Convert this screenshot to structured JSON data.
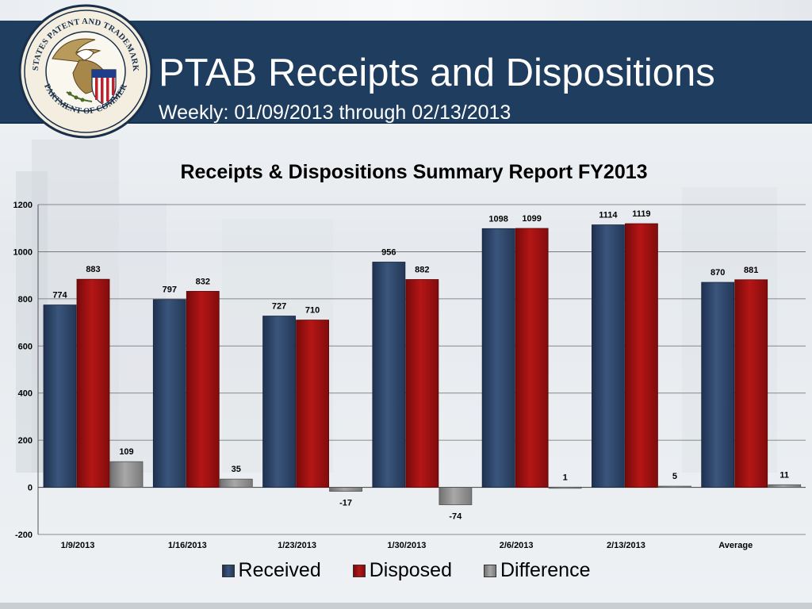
{
  "header": {
    "title": "PTAB Receipts and Dispositions",
    "subtitle": "Weekly: 01/09/2013 through 02/13/2013"
  },
  "seal": {
    "icon": "uspto-seal-icon",
    "text_top": "UNITED STATES PATENT AND TRADEMARK OFFICE",
    "text_bottom": "DEPARTMENT OF COMMERCE"
  },
  "colors": {
    "header_bg": "#1f3d5f",
    "received": "#2e4466",
    "disposed": "#9b1010",
    "difference": "#8c8c8c"
  },
  "chart_data": {
    "type": "bar",
    "title": "Receipts & Dispositions Summary Report FY2013",
    "categories": [
      "1/9/2013",
      "1/16/2013",
      "1/23/2013",
      "1/30/2013",
      "2/6/2013",
      "2/13/2013",
      "Average"
    ],
    "series": [
      {
        "name": "Received",
        "values": [
          774,
          797,
          727,
          956,
          1098,
          1114,
          870
        ]
      },
      {
        "name": "Disposed",
        "values": [
          883,
          832,
          710,
          882,
          1099,
          1119,
          881
        ]
      },
      {
        "name": "Difference",
        "values": [
          109,
          35,
          -17,
          -74,
          1,
          5,
          11
        ]
      }
    ],
    "ylim": [
      -200,
      1200
    ],
    "yticks": [
      -200,
      0,
      200,
      400,
      600,
      800,
      1000,
      1200
    ],
    "grid": true,
    "legend": "bottom"
  }
}
